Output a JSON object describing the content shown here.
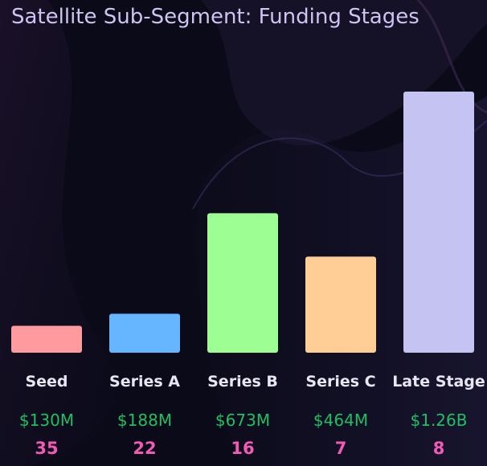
{
  "colors": {
    "background": "#0b0a18",
    "title": "#cfc3f2",
    "category_label": "#e8e6f3",
    "amount": "#1fbf62",
    "count": "#f25ab5"
  },
  "chart_data": {
    "type": "bar",
    "title": "Satellite Sub-Segment: Funding Stages",
    "categories": [
      "Seed",
      "Series A",
      "Series B",
      "Series C",
      "Late Stage"
    ],
    "values": [
      130,
      188,
      673,
      464,
      1260
    ],
    "value_unit": "USD millions",
    "amount_labels": [
      "$130M",
      "$188M",
      "$673M",
      "$464M",
      "$1.26B"
    ],
    "count_labels": [
      "35",
      "22",
      "16",
      "7",
      "8"
    ],
    "bar_colors": [
      "#ff9a9e",
      "#66b6ff",
      "#9dff93",
      "#ffcd96",
      "#c5c3f2"
    ],
    "ylim": [
      0,
      1260
    ],
    "grid": false,
    "legend": "none"
  }
}
